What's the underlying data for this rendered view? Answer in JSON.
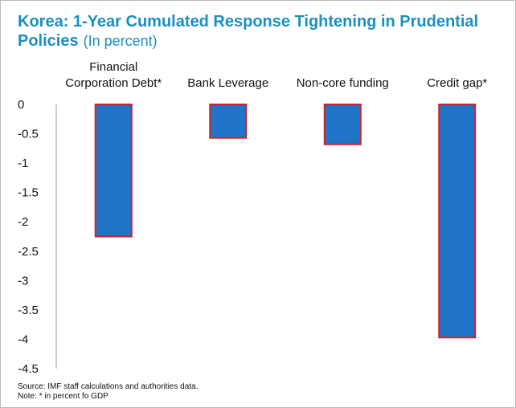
{
  "title": "Korea: 1-Year Cumulated Response Tightening in Prudential Policies",
  "subtitle": "(In percent)",
  "source": "Source: IMF staff calculations and authorities data.",
  "note": "Note: * in percent fo GDP",
  "colors": {
    "bar_fill": "#1f74c8",
    "bar_stroke": "#d0202c",
    "title": "#1a8fc0",
    "axis": "#9a9a9a"
  },
  "chart_data": {
    "type": "bar",
    "categories": [
      "Financial Corporation Debt*",
      "Bank Leverage",
      "Non-core funding",
      "Credit gap*"
    ],
    "category_label_lines": [
      [
        "Financial",
        "Corporation Debt*"
      ],
      [
        "Bank Leverage"
      ],
      [
        "Non-core funding"
      ],
      [
        "Credit gap*"
      ]
    ],
    "values": [
      -2.25,
      -0.57,
      -0.68,
      -3.97
    ],
    "ylim": [
      -4.5,
      0
    ],
    "yticks": [
      0,
      -0.5,
      -1,
      -1.5,
      -2,
      -2.5,
      -3,
      -3.5,
      -4,
      -4.5
    ],
    "ytick_labels": [
      "0",
      "-0.5",
      "-1",
      "-1.5",
      "-2",
      "-2.5",
      "-3",
      "-3.5",
      "-4",
      "-4.5"
    ],
    "category_labels_position": "top",
    "grid": false,
    "legend": "none"
  }
}
